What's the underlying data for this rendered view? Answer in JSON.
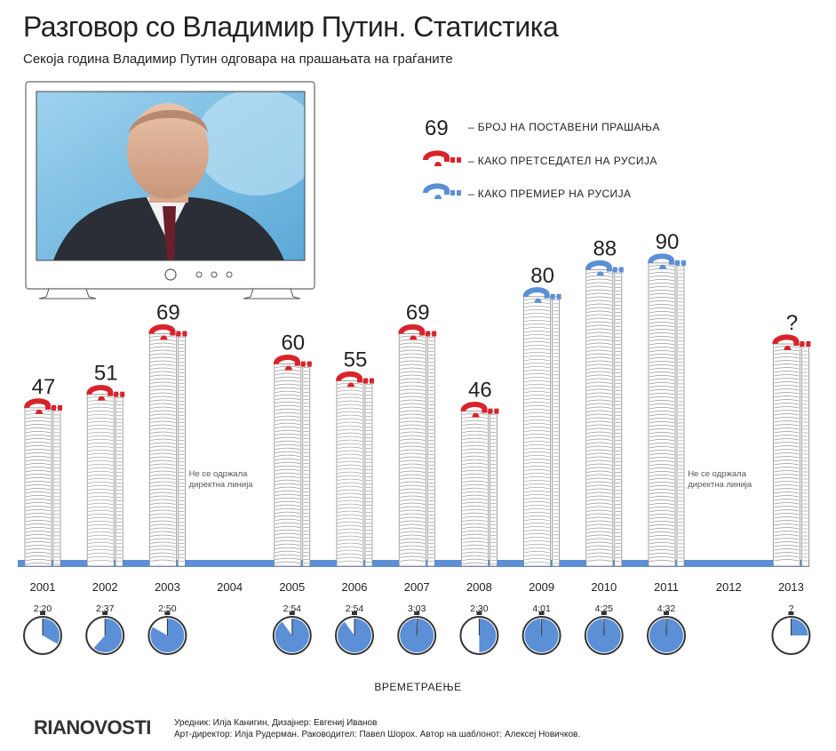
{
  "header": {
    "title": "Разговор со Владимир Путин. Статистика",
    "subtitle": "Секоја година Владимир Путин одговара на прашањата на граѓаните"
  },
  "legend": {
    "count_symbol": "69",
    "count_label": "– БРОЈ НА ПОСТАВЕНИ ПРАШАЊА",
    "president_label": "– КАКО ПРЕТСЕДАТЕЛ НА РУСИЈА",
    "premier_label": "– КАКО ПРЕМИЕР НА РУСИЈА"
  },
  "colors": {
    "president": "#d8232a",
    "premier": "#5b8fd6",
    "baseline": "#5b8fd6",
    "stack": "#9a9a9a"
  },
  "chart_data": {
    "type": "bar",
    "categories": [
      "2001",
      "2002",
      "2003",
      "2004",
      "2005",
      "2006",
      "2007",
      "2008",
      "2009",
      "2010",
      "2011",
      "2012",
      "2013"
    ],
    "values": [
      47,
      51,
      69,
      null,
      60,
      55,
      69,
      46,
      80,
      88,
      90,
      null,
      null
    ],
    "value_labels": [
      "47",
      "51",
      "69",
      "",
      "60",
      "55",
      "69",
      "46",
      "80",
      "88",
      "90",
      "",
      "?"
    ],
    "role": [
      "president",
      "president",
      "president",
      "none",
      "president",
      "president",
      "president",
      "president",
      "premier",
      "premier",
      "premier",
      "none",
      "president"
    ],
    "durations": [
      "2:20",
      "2:37",
      "2:50",
      "",
      "2:54",
      "2:54",
      "3:03",
      "2:30",
      "4:01",
      "4:25",
      "4:32",
      "",
      "?"
    ],
    "duration_minutes": [
      140,
      157,
      170,
      null,
      174,
      174,
      183,
      150,
      241,
      265,
      272,
      null,
      null
    ],
    "no_event_note": "Не се одржала директна линија",
    "duration_axis_label": "ВРЕМЕТРАЕЊЕ"
  },
  "footer": {
    "logo": "RIANOVOSTI",
    "credits_line1": "Уредник: Илја Канигин, Дизајнер: Евгениј Иванов",
    "credits_line2": "Арт-директор: Илја Рудерман. Раководител: Павел Шорох. Автор на шаблонот: Алексеј Новичков."
  }
}
